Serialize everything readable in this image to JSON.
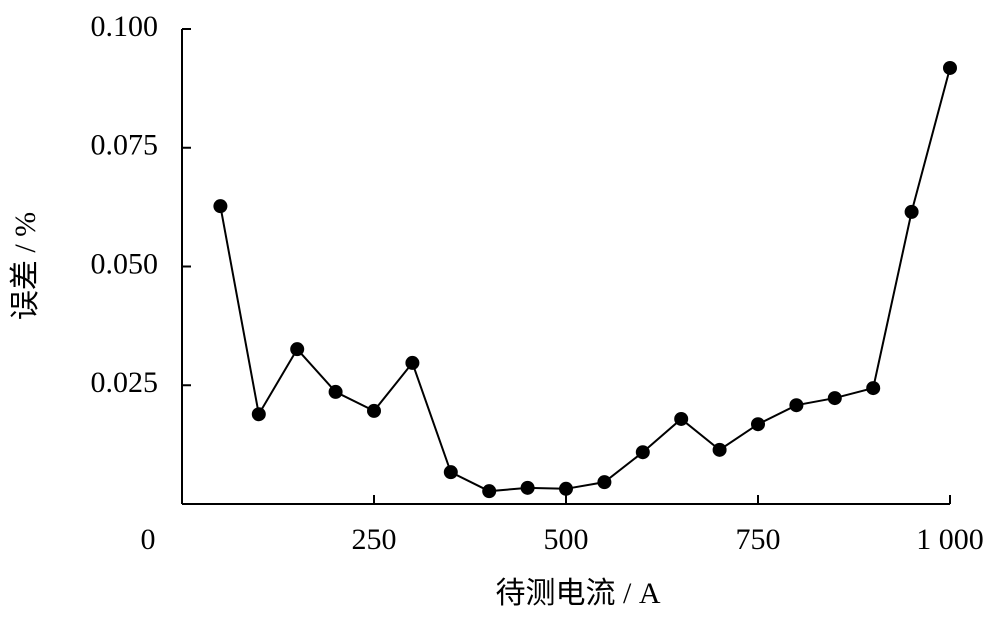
{
  "chart_data": {
    "type": "line",
    "x_label": "待测电流 / A",
    "y_label": "误差 / %",
    "x": [
      50,
      100,
      150,
      200,
      250,
      300,
      350,
      400,
      450,
      500,
      550,
      600,
      650,
      700,
      750,
      800,
      850,
      900,
      950,
      1000
    ],
    "values": [
      0.0627,
      0.0189,
      0.0326,
      0.0236,
      0.0196,
      0.0297,
      0.0067,
      0.0027,
      0.0034,
      0.0032,
      0.0046,
      0.0109,
      0.0179,
      0.0114,
      0.0168,
      0.0208,
      0.0223,
      0.0244,
      0.0615,
      0.0918
    ],
    "color": "#000000",
    "xlim": [
      0,
      1000
    ],
    "xticks": [
      0,
      250,
      500,
      750,
      {
        "value": 1000,
        "label": "1 000"
      }
    ],
    "ylim": [
      0,
      0.1
    ],
    "yticks": [
      0.025,
      {
        "value": 0.05,
        "label": "0.050"
      },
      0.075,
      {
        "value": 0.1,
        "label": "0.100"
      }
    ]
  }
}
